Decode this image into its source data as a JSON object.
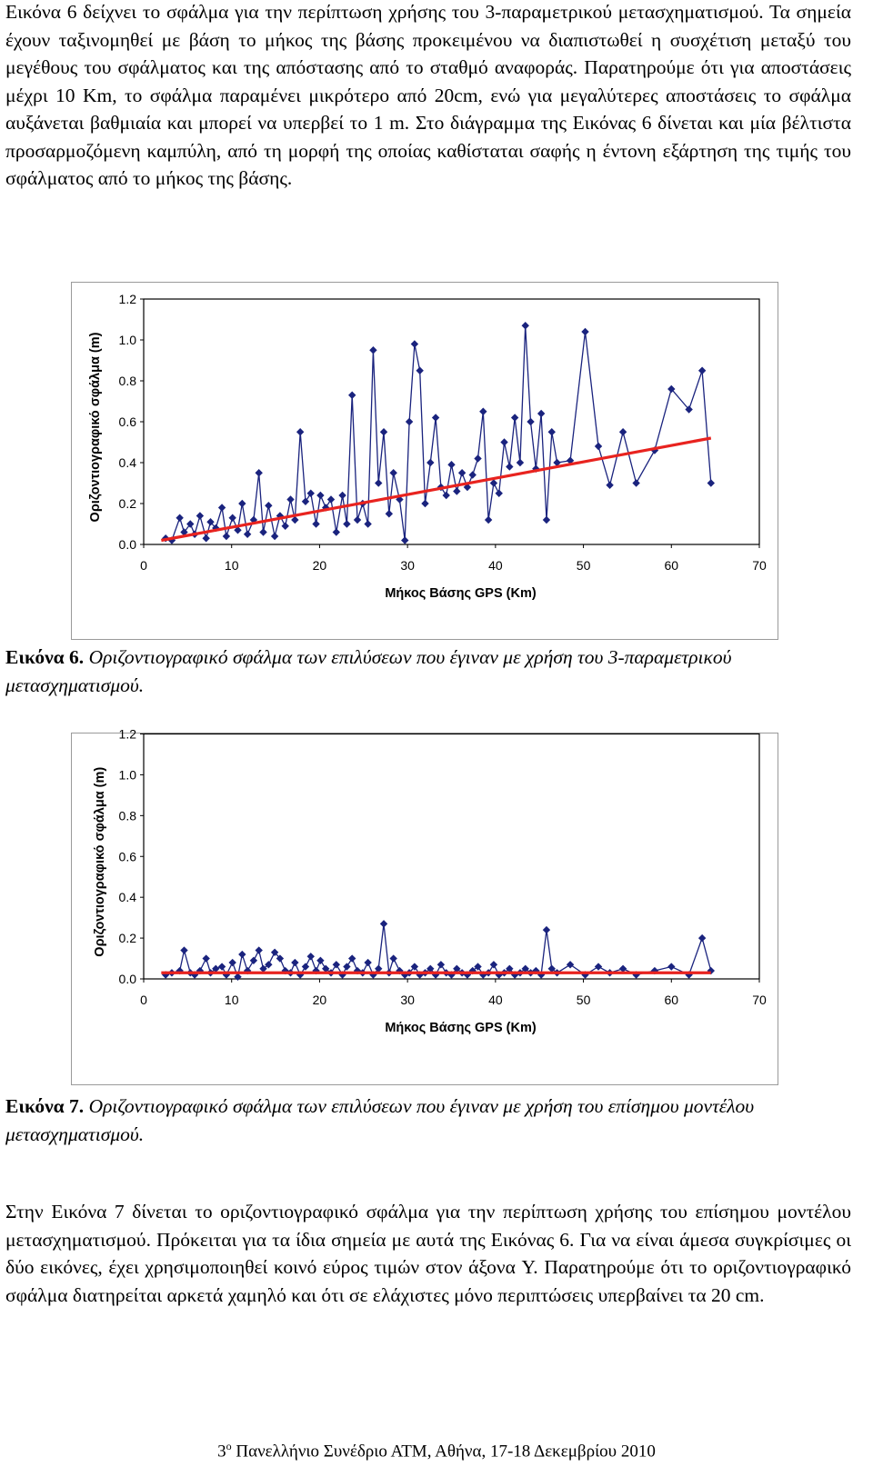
{
  "paragraphs": {
    "intro": "Εικόνα 6 δείχνει το σφάλμα για την περίπτωση χρήσης του 3-παραμετρικού μετασχηματισμού. Τα σημεία έχουν ταξινομηθεί με βάση το μήκος της βάσης προκειμένου να διαπιστωθεί η συσχέτιση μεταξύ του μεγέθους του σφάλματος και της απόστασης από το σταθμό αναφοράς. Παρατηρούμε ότι για αποστάσεις μέχρι 10 Km, το σφάλμα παραμένει μικρότερο από 20cm, ενώ για μεγαλύτερες αποστάσεις το σφάλμα αυξάνεται βαθμιαία και μπορεί να υπερβεί το 1 m. Στο διάγραμμα της Εικόνας 6 δίνεται και μία βέλτιστα προσαρμοζόμενη καμπύλη, από τη μορφή της οποίας καθίσταται σαφής η έντονη εξάρτηση της τιμής του σφάλματος από το μήκος της βάσης.",
    "conclusion": "Στην Εικόνα 7 δίνεται το οριζοντιογραφικό σφάλμα για την περίπτωση χρήσης του επίσημου μοντέλου μετασχηματισμού. Πρόκειται για τα ίδια σημεία με αυτά της Εικόνας 6. Για να είναι άμεσα συγκρίσιμες οι δύο εικόνες, έχει χρησιμοποιηθεί κοινό εύρος τιμών στον άξονα Y. Παρατηρούμε ότι το οριζοντιογραφικό σφάλμα διατηρείται αρκετά χαμηλό και ότι σε ελάχιστες μόνο περιπτώσεις υπερβαίνει τα 20 cm."
  },
  "captions": {
    "fig6": {
      "label": "Εικόνα 6.",
      "text": "Οριζοντιογραφικό σφάλμα των επιλύσεων που έγιναν με χρήση του 3-παραμετρικού μετασχηματισμού."
    },
    "fig7": {
      "label": "Εικόνα 7.",
      "text": "Οριζοντιογραφικό σφάλμα των επιλύσεων που έγιναν με χρήση του επίσημου μοντέλου μετασχηματισμού."
    }
  },
  "footer": {
    "ordinal": "3",
    "sup": "ο",
    "text": "Πανελλήνιο Συνέδριο ΑΤΜ, Αθήνα, 17-18 Δεκεμβρίου 2010"
  },
  "chart_data": [
    {
      "type": "line",
      "xlabel": "Μήκος Βάσης GPS (Km)",
      "ylabel": "Οριζοντιογραφικό σφάλμα (m)",
      "xlim": [
        0,
        70
      ],
      "ylim": [
        0,
        1.2
      ],
      "xticks": [
        "0",
        "10",
        "20",
        "30",
        "40",
        "50",
        "60",
        "70"
      ],
      "yticks": [
        "0.0",
        "0.2",
        "0.4",
        "0.6",
        "0.8",
        "1.0",
        "1.2"
      ],
      "grid": false,
      "series_color": "#1a237e",
      "trend_color": "#e8231f",
      "series": [
        {
          "x": [
            2.5,
            3.2,
            4.1,
            4.6,
            5.3,
            5.8,
            6.4,
            7.1,
            7.6,
            8.2,
            8.9,
            9.4,
            10.1,
            10.7,
            11.2,
            11.8,
            12.5,
            13.1,
            13.6,
            14.2,
            14.9,
            15.5,
            16.1,
            16.7,
            17.2,
            17.8,
            18.4,
            19.0,
            19.6,
            20.1,
            20.7,
            21.3,
            21.9,
            22.6,
            23.1,
            23.7,
            24.3,
            24.9,
            25.5,
            26.1,
            26.7,
            27.3,
            27.9,
            28.4,
            29.1,
            29.7,
            30.2,
            30.8,
            31.4,
            32.0,
            32.6,
            33.2,
            33.8,
            34.4,
            35.0,
            35.6,
            36.2,
            36.8,
            37.4,
            38.0,
            38.6,
            39.2,
            39.8,
            40.4,
            41.0,
            41.6,
            42.2,
            42.8,
            43.4,
            44.0,
            44.6,
            45.2,
            45.8,
            46.4,
            47.0,
            48.5,
            50.2,
            51.7,
            53.0,
            54.5,
            56.0,
            58.1,
            60.0,
            62.0,
            63.5,
            64.5
          ],
          "y": [
            0.03,
            0.02,
            0.13,
            0.06,
            0.1,
            0.05,
            0.14,
            0.03,
            0.11,
            0.08,
            0.18,
            0.04,
            0.13,
            0.07,
            0.2,
            0.05,
            0.12,
            0.35,
            0.06,
            0.19,
            0.04,
            0.14,
            0.09,
            0.22,
            0.12,
            0.55,
            0.21,
            0.25,
            0.1,
            0.24,
            0.18,
            0.22,
            0.06,
            0.24,
            0.1,
            0.73,
            0.12,
            0.2,
            0.1,
            0.95,
            0.3,
            0.55,
            0.15,
            0.35,
            0.22,
            0.02,
            0.6,
            0.98,
            0.85,
            0.2,
            0.4,
            0.62,
            0.28,
            0.24,
            0.39,
            0.26,
            0.35,
            0.28,
            0.34,
            0.42,
            0.65,
            0.12,
            0.3,
            0.25,
            0.5,
            0.38,
            0.62,
            0.4,
            1.07,
            0.6,
            0.37,
            0.64,
            0.12,
            0.55,
            0.4,
            0.41,
            1.04,
            0.48,
            0.29,
            0.55,
            0.3,
            0.46,
            0.76,
            0.66,
            0.85,
            0.3
          ]
        }
      ],
      "trend": {
        "x": [
          2,
          64.5
        ],
        "y": [
          0.02,
          0.52
        ]
      }
    },
    {
      "type": "line",
      "xlabel": "Μήκος Βάσης GPS (Km)",
      "ylabel": "Οριζοντιογραφικό σφάλμα (m)",
      "xlim": [
        0,
        70
      ],
      "ylim": [
        0,
        1.2
      ],
      "xticks": [
        "0",
        "10",
        "20",
        "30",
        "40",
        "50",
        "60",
        "70"
      ],
      "yticks": [
        "0.0",
        "0.2",
        "0.4",
        "0.6",
        "0.8",
        "1.0",
        "1.2"
      ],
      "grid": false,
      "series_color": "#1a237e",
      "trend_color": "#e8231f",
      "series": [
        {
          "x": [
            2.5,
            3.2,
            4.1,
            4.6,
            5.3,
            5.8,
            6.4,
            7.1,
            7.6,
            8.2,
            8.9,
            9.4,
            10.1,
            10.7,
            11.2,
            11.8,
            12.5,
            13.1,
            13.6,
            14.2,
            14.9,
            15.5,
            16.1,
            16.7,
            17.2,
            17.8,
            18.4,
            19.0,
            19.6,
            20.1,
            20.7,
            21.3,
            21.9,
            22.6,
            23.1,
            23.7,
            24.3,
            24.9,
            25.5,
            26.1,
            26.7,
            27.3,
            27.9,
            28.4,
            29.1,
            29.7,
            30.2,
            30.8,
            31.4,
            32.0,
            32.6,
            33.2,
            33.8,
            34.4,
            35.0,
            35.6,
            36.2,
            36.8,
            37.4,
            38.0,
            38.6,
            39.2,
            39.8,
            40.4,
            41.0,
            41.6,
            42.2,
            42.8,
            43.4,
            44.0,
            44.6,
            45.2,
            45.8,
            46.4,
            47.0,
            48.5,
            50.2,
            51.7,
            53.0,
            54.5,
            56.0,
            58.1,
            60.0,
            62.0,
            63.5,
            64.5
          ],
          "y": [
            0.02,
            0.03,
            0.04,
            0.14,
            0.03,
            0.02,
            0.04,
            0.1,
            0.03,
            0.05,
            0.06,
            0.02,
            0.08,
            0.01,
            0.12,
            0.04,
            0.09,
            0.14,
            0.05,
            0.07,
            0.13,
            0.1,
            0.04,
            0.03,
            0.08,
            0.02,
            0.06,
            0.11,
            0.04,
            0.09,
            0.05,
            0.03,
            0.07,
            0.02,
            0.06,
            0.1,
            0.04,
            0.03,
            0.08,
            0.02,
            0.05,
            0.27,
            0.03,
            0.1,
            0.04,
            0.02,
            0.03,
            0.06,
            0.02,
            0.03,
            0.05,
            0.02,
            0.07,
            0.03,
            0.02,
            0.05,
            0.03,
            0.02,
            0.04,
            0.06,
            0.02,
            0.03,
            0.07,
            0.02,
            0.03,
            0.05,
            0.02,
            0.03,
            0.05,
            0.03,
            0.04,
            0.02,
            0.24,
            0.05,
            0.03,
            0.07,
            0.02,
            0.06,
            0.03,
            0.05,
            0.02,
            0.04,
            0.06,
            0.02,
            0.2,
            0.04
          ]
        }
      ],
      "trend": {
        "x": [
          2,
          64.5
        ],
        "y": [
          0.03,
          0.03
        ]
      }
    }
  ]
}
